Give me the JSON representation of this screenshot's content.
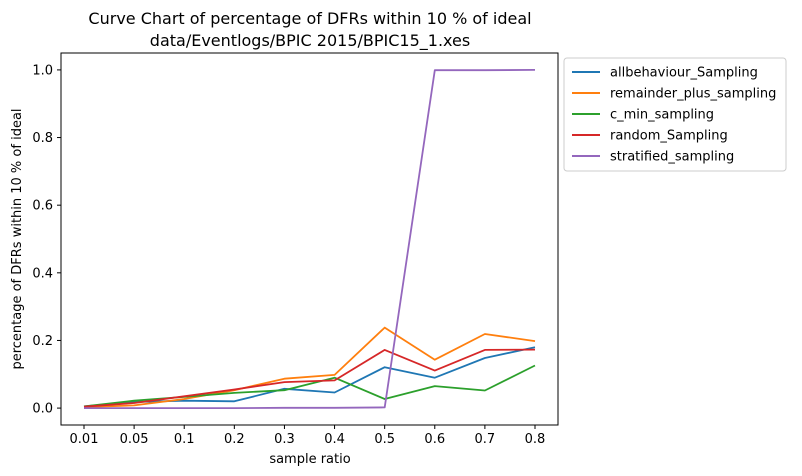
{
  "chart_data": {
    "type": "line",
    "title": "Curve Chart of percentage of DFRs within 10 % of ideal",
    "subtitle": "data/Eventlogs/BPIC 2015/BPIC15_1.xes",
    "xlabel": "sample ratio",
    "ylabel": "percentage of DFRs within 10 % of ideal",
    "categories": [
      "0.01",
      "0.05",
      "0.1",
      "0.2",
      "0.3",
      "0.4",
      "0.5",
      "0.6",
      "0.7",
      "0.8"
    ],
    "ylim": [
      -0.05,
      1.05
    ],
    "yticks": [
      "0.0",
      "0.2",
      "0.4",
      "0.6",
      "0.8",
      "1.0"
    ],
    "ytick_values": [
      0.0,
      0.2,
      0.4,
      0.6,
      0.8,
      1.0
    ],
    "grid": false,
    "legend_position": "outside right, top",
    "series": [
      {
        "name": "allbehaviour_Sampling",
        "color": "#1f77b4",
        "values": [
          0.005,
          0.018,
          0.022,
          0.02,
          0.057,
          0.046,
          0.121,
          0.09,
          0.148,
          0.18
        ]
      },
      {
        "name": "remainder_plus_sampling",
        "color": "#ff7f0e",
        "values": [
          0.003,
          0.008,
          0.027,
          0.053,
          0.087,
          0.098,
          0.238,
          0.143,
          0.219,
          0.198
        ]
      },
      {
        "name": "c_min_sampling",
        "color": "#2ca02c",
        "values": [
          0.005,
          0.022,
          0.033,
          0.045,
          0.053,
          0.09,
          0.027,
          0.065,
          0.052,
          0.126
        ]
      },
      {
        "name": "random_Sampling",
        "color": "#d62728",
        "values": [
          0.004,
          0.015,
          0.035,
          0.055,
          0.077,
          0.082,
          0.172,
          0.111,
          0.172,
          0.173
        ]
      },
      {
        "name": "stratified_sampling",
        "color": "#9467bd",
        "values": [
          0.0,
          0.0,
          0.0,
          0.0,
          0.001,
          0.001,
          0.002,
          0.999,
          0.999,
          1.0
        ]
      }
    ]
  }
}
